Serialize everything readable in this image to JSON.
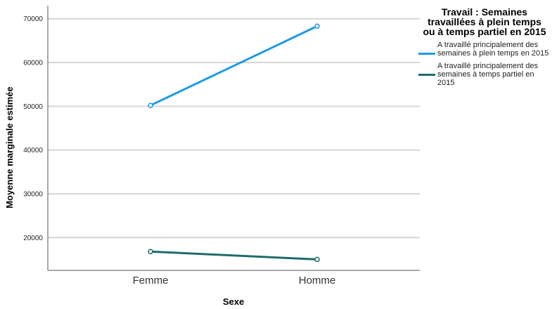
{
  "chart_data": {
    "type": "line",
    "title": "",
    "xlabel": "Sexe",
    "ylabel": "Moyenne marginale estimée",
    "categories": [
      "Femme",
      "Homme"
    ],
    "ylim": [
      12500,
      73000
    ],
    "yticks": [
      20000,
      30000,
      40000,
      50000,
      60000,
      70000
    ],
    "grid": true,
    "legend": {
      "title": "Travail : Semaines travaillées à plein temps ou à temps partiel en 2015",
      "placement": "right"
    },
    "series": [
      {
        "name": "A travaillé principalement des semaines à plein temps en 2015",
        "color": "#1e9ae6",
        "values": [
          50200,
          68300
        ]
      },
      {
        "name": "A travaillé principalement des semaines à temps partiel en 2015",
        "color": "#1e6b6b",
        "values": [
          16800,
          15000
        ]
      }
    ]
  }
}
